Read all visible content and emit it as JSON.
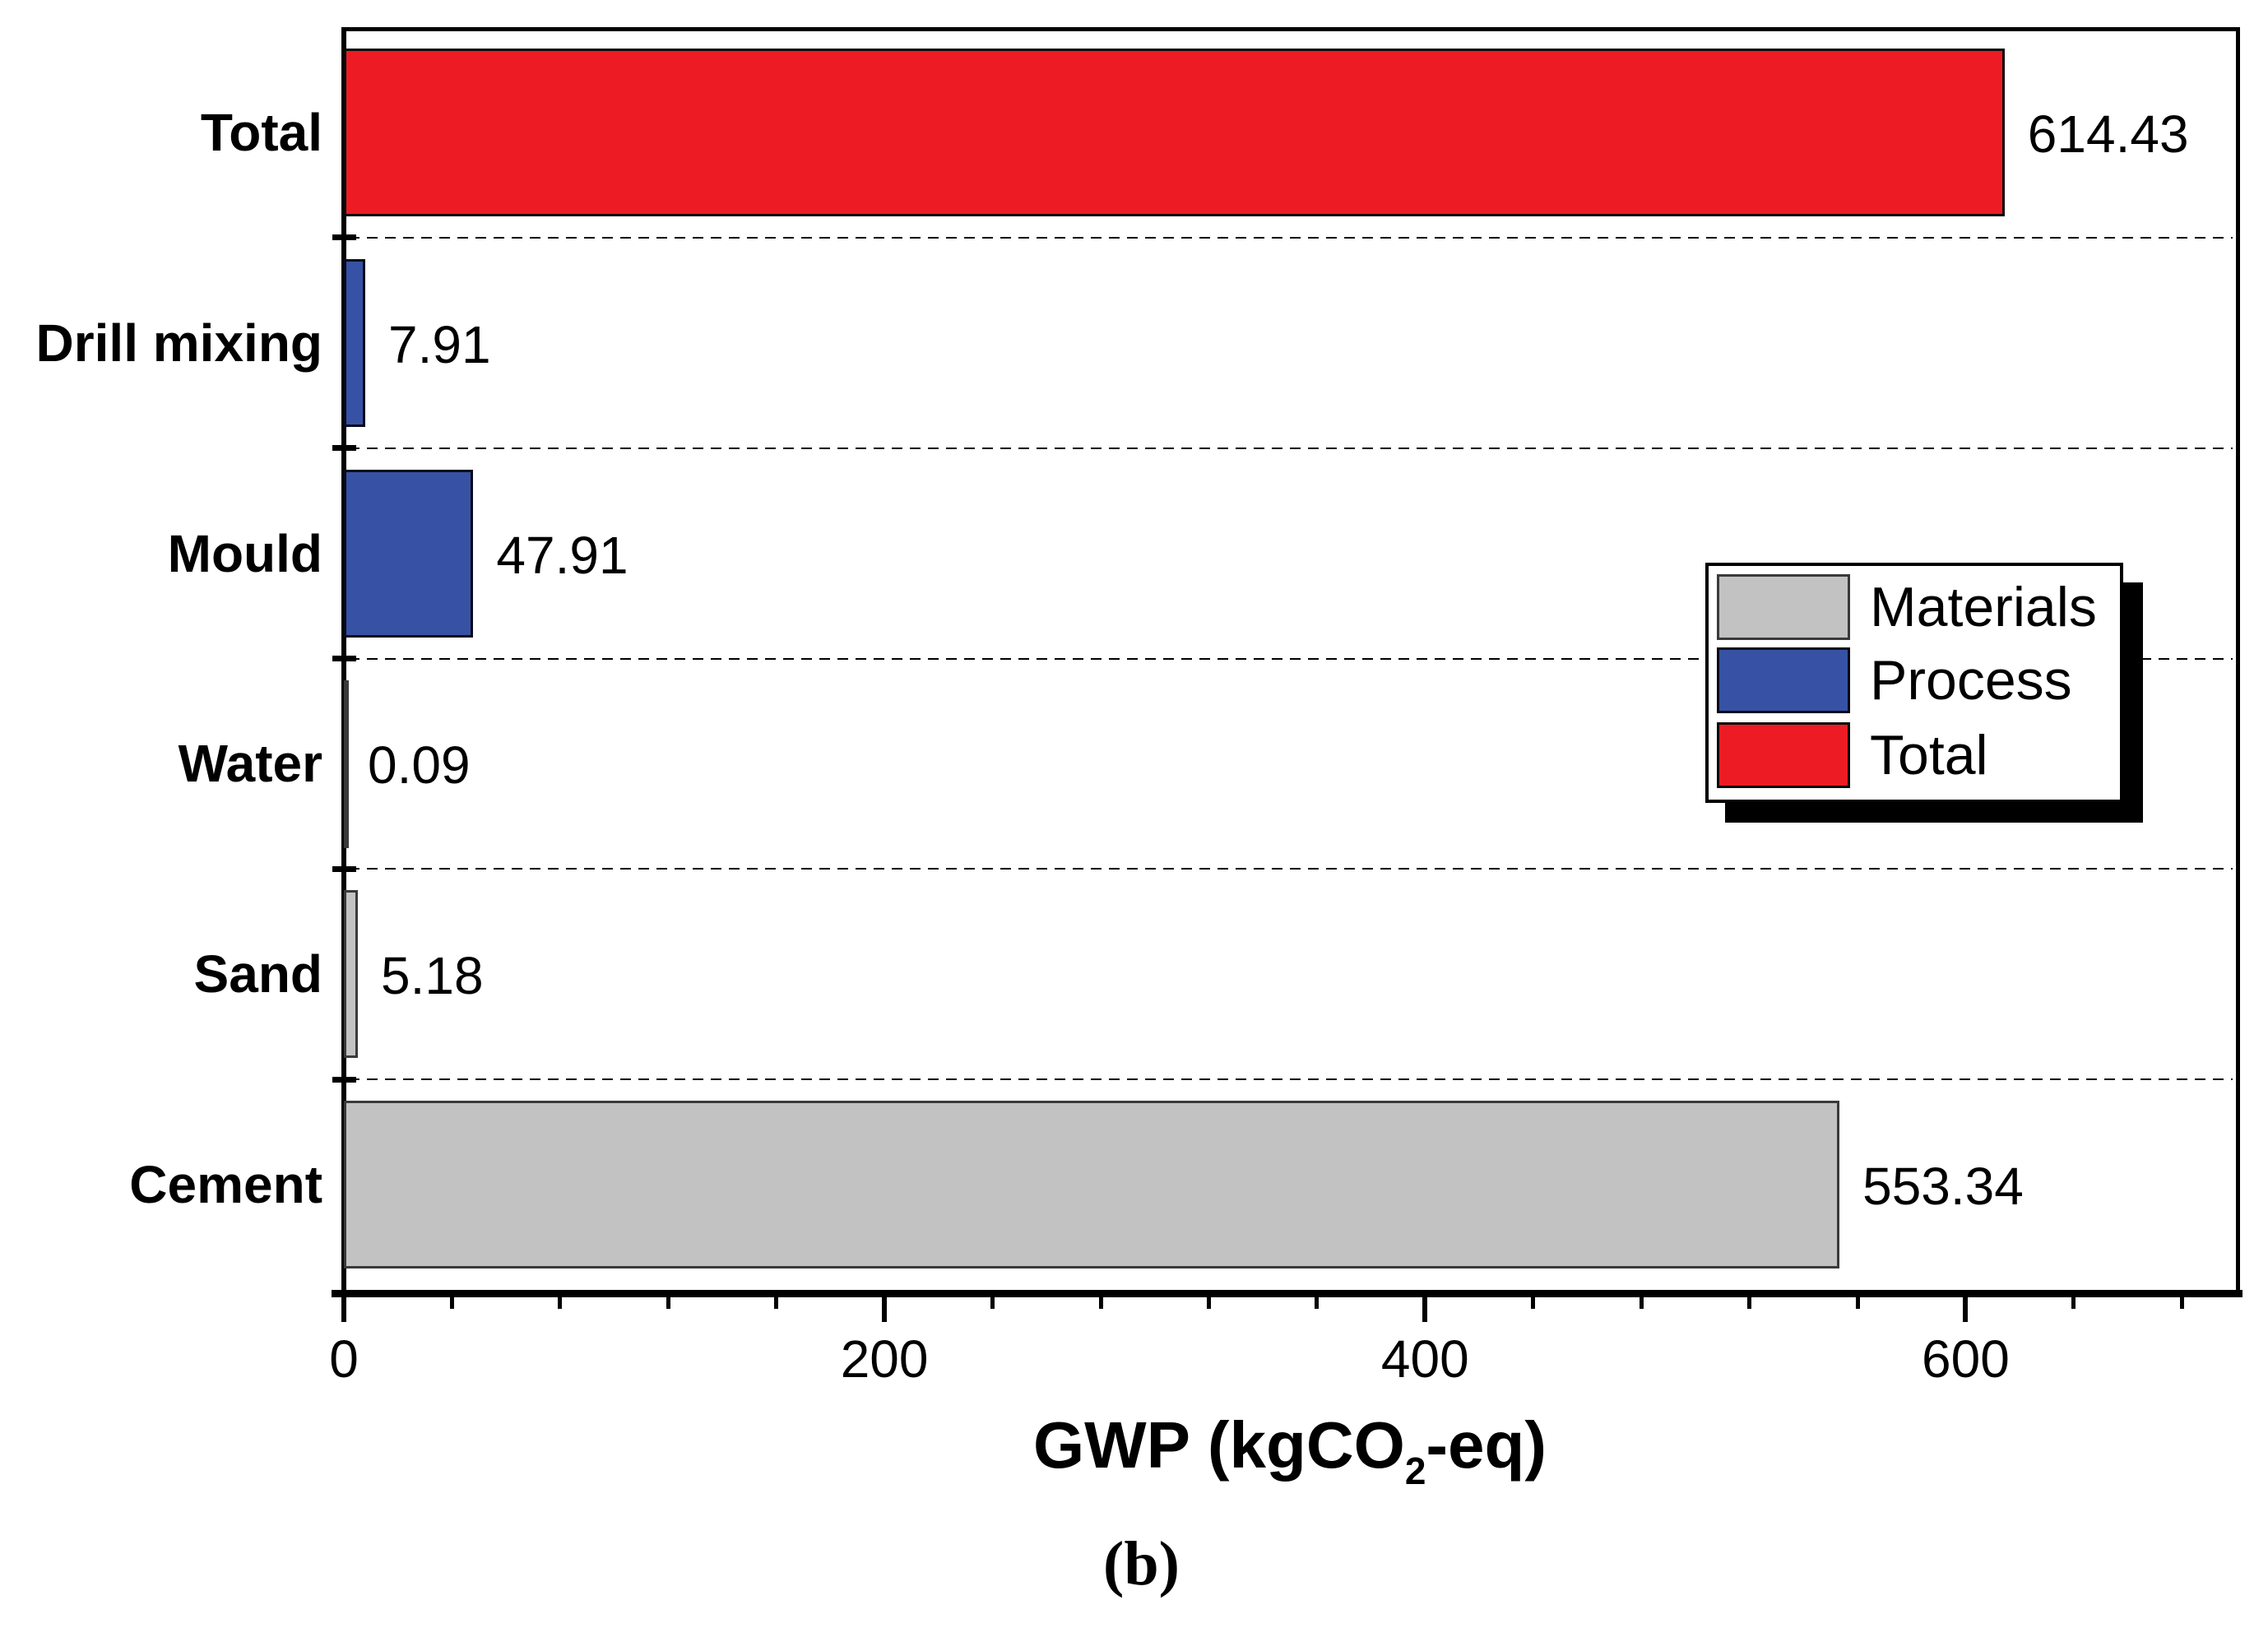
{
  "chart_data": {
    "type": "bar",
    "orientation": "horizontal",
    "caption": "(b)",
    "xlabel_text": "GWP (kgCO2-eq)",
    "xlabel_parts": {
      "prefix": "GWP (kgCO",
      "subscript": "2",
      "suffix": "-eq)"
    },
    "rows": [
      {
        "category": "Total",
        "value": 614.43,
        "label": "614.43",
        "series": "Total"
      },
      {
        "category": "Drill mixing",
        "value": 7.91,
        "label": "7.91",
        "series": "Process"
      },
      {
        "category": "Mould",
        "value": 47.91,
        "label": "47.91",
        "series": "Process"
      },
      {
        "category": "Water",
        "value": 0.09,
        "label": "0.09",
        "series": "Materials"
      },
      {
        "category": "Sand",
        "value": 5.18,
        "label": "5.18",
        "series": "Materials"
      },
      {
        "category": "Cement",
        "value": 553.34,
        "label": "553.34",
        "series": "Materials"
      }
    ],
    "x_axis": {
      "min": 0,
      "max": 700,
      "major_ticks": [
        0,
        200,
        400,
        600
      ],
      "major_tick_labels": [
        "0",
        "200",
        "400",
        "600"
      ],
      "minor_tick_step": 40,
      "grid": false
    },
    "legend": {
      "position": "middle-right",
      "items": [
        {
          "label": "Materials",
          "color": "#C2C2C2",
          "border": "#3A3A3A"
        },
        {
          "label": "Process",
          "color": "#3752A5",
          "border": "#0A0A1A"
        },
        {
          "label": "Total",
          "color": "#ED1C24",
          "border": "#0A0A0A"
        }
      ]
    },
    "row_separator_style": "dashed"
  },
  "colors": {
    "background": "#FFFFFF",
    "axis": "#000000",
    "text": "#000000",
    "materials": "#C2C2C2",
    "process": "#3752A5",
    "total": "#ED1C24"
  }
}
